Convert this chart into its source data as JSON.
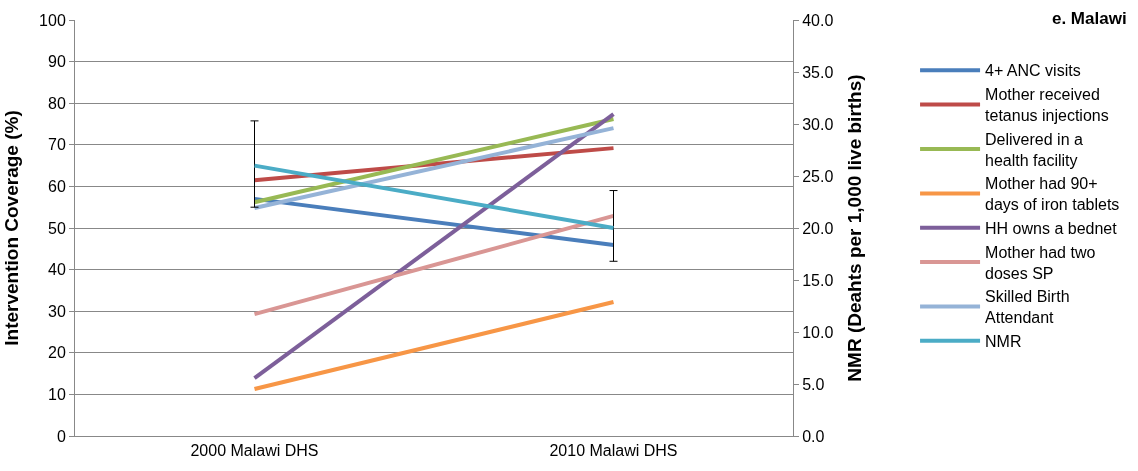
{
  "chart_data": {
    "type": "line",
    "title": "e. Malawi",
    "ylabel": "Intervention Coverage (%)",
    "y2label": "NMR (Deahts per 1,000 live births)",
    "categories": [
      "2000 Malawi DHS",
      "2010 Malawi DHS"
    ],
    "series": [
      {
        "name": "4+ ANC visits",
        "color": "#4a7ebb",
        "values": [
          57.0,
          45.9
        ]
      },
      {
        "name": "Mother received tetanus injections",
        "color": "#be4b48",
        "values": [
          61.5,
          69.2
        ]
      },
      {
        "name": "Delivered in a health facility",
        "color": "#98b954",
        "values": [
          56.2,
          76.2
        ]
      },
      {
        "name": "Mother had 90+ days of iron tablets",
        "color": "#f79646",
        "values": [
          11.3,
          32.2
        ]
      },
      {
        "name": "HH owns a bednet",
        "color": "#7d5f9a",
        "values": [
          13.9,
          77.4
        ]
      },
      {
        "name": "Mother had two doses SP",
        "color": "#d99694",
        "values": [
          29.3,
          52.9
        ]
      },
      {
        "name": "Skilled Birth Attendant",
        "color": "#95b3d7",
        "values": [
          54.8,
          74.0
        ]
      },
      {
        "name": "NMR",
        "color": "#4bacc6",
        "axis": "y2",
        "values": [
          26.0,
          20.0
        ],
        "errors": [
          [
            22.0,
            30.3
          ],
          [
            16.8,
            23.6
          ]
        ]
      }
    ],
    "ylim": [
      0,
      100
    ],
    "yticks": [
      0,
      10,
      20,
      30,
      40,
      50,
      60,
      70,
      80,
      90,
      100
    ],
    "y2lim": [
      0,
      40
    ],
    "y2ticks": [
      {
        "value": 0,
        "label": "0.0"
      },
      {
        "value": 5,
        "label": "5.0"
      },
      {
        "value": 10,
        "label": "10.0"
      },
      {
        "value": 15,
        "label": "15.0"
      },
      {
        "value": 20,
        "label": "20.0"
      },
      {
        "value": 25,
        "label": "25.0"
      },
      {
        "value": 30,
        "label": "30.0"
      },
      {
        "value": 35,
        "label": "35.0"
      },
      {
        "value": 40,
        "label": "40.0"
      }
    ],
    "grid": "y",
    "legend": "right",
    "marker": "none",
    "line_style": "solid"
  }
}
